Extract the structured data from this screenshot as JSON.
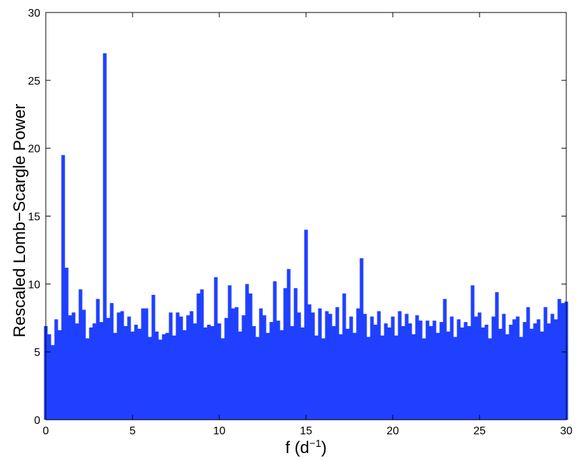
{
  "chart_data": {
    "type": "stem",
    "ylabel": "Rescaled Lomb−Scargle Power",
    "xlabel": [
      "f (d",
      "−1",
      ")"
    ],
    "color": "#2040ff",
    "xlim": [
      0,
      30
    ],
    "xticks": [
      0,
      5,
      10,
      15,
      20,
      25,
      30
    ],
    "ylim": [
      0,
      30
    ],
    "yticks": [
      0,
      5,
      10,
      15,
      20,
      25,
      30
    ],
    "x": [
      0,
      0.2,
      0.4,
      0.6,
      0.8,
      1,
      1.2,
      1.4,
      1.6,
      1.8,
      2,
      2.2,
      2.4,
      2.6,
      2.8,
      3,
      3.2,
      3.4,
      3.6,
      3.8,
      4,
      4.2,
      4.4,
      4.6,
      4.8,
      5,
      5.2,
      5.4,
      5.6,
      5.8,
      6,
      6.2,
      6.4,
      6.6,
      6.8,
      7,
      7.2,
      7.4,
      7.6,
      7.8,
      8,
      8.2,
      8.4,
      8.6,
      8.8,
      9,
      9.2,
      9.4,
      9.6,
      9.8,
      10,
      10.2,
      10.4,
      10.6,
      10.8,
      11,
      11.2,
      11.4,
      11.6,
      11.8,
      12,
      12.2,
      12.4,
      12.6,
      12.8,
      13,
      13.2,
      13.4,
      13.6,
      13.8,
      14,
      14.2,
      14.4,
      14.6,
      14.8,
      15,
      15.2,
      15.4,
      15.6,
      15.8,
      16,
      16.2,
      16.4,
      16.6,
      16.8,
      17,
      17.2,
      17.4,
      17.6,
      17.8,
      18,
      18.2,
      18.4,
      18.6,
      18.8,
      19,
      19.2,
      19.4,
      19.6,
      19.8,
      20,
      20.2,
      20.4,
      20.6,
      20.8,
      21,
      21.2,
      21.4,
      21.6,
      21.8,
      22,
      22.2,
      22.4,
      22.6,
      22.8,
      23,
      23.2,
      23.4,
      23.6,
      23.8,
      24,
      24.2,
      24.4,
      24.6,
      24.8,
      25,
      25.2,
      25.4,
      25.6,
      25.8,
      26,
      26.2,
      26.4,
      26.6,
      26.8,
      27,
      27.2,
      27.4,
      27.6,
      27.8,
      28,
      28.2,
      28.4,
      28.6,
      28.8,
      29,
      29.2,
      29.4,
      29.6,
      29.8,
      30
    ],
    "values": [
      6.9,
      6.3,
      5.5,
      7.4,
      6.6,
      19.5,
      11.2,
      7.7,
      7.9,
      7.1,
      9.6,
      8.1,
      6.0,
      6.8,
      7.1,
      8.9,
      7.2,
      27.0,
      7.5,
      8.6,
      6.4,
      7.9,
      8.0,
      6.9,
      7.6,
      6.5,
      7.0,
      6.7,
      8.2,
      8.2,
      6.1,
      9.2,
      6.5,
      5.9,
      6.3,
      6.4,
      7.9,
      6.2,
      7.9,
      7.6,
      6.6,
      7.7,
      8.0,
      7.1,
      9.3,
      9.6,
      6.8,
      7.0,
      6.9,
      10.5,
      7.1,
      6.0,
      7.5,
      9.9,
      8.2,
      8.3,
      6.5,
      7.7,
      10.0,
      9.3,
      6.9,
      6.1,
      8.2,
      7.7,
      6.4,
      7.2,
      10.2,
      7.3,
      6.6,
      9.7,
      11.1,
      6.9,
      9.7,
      7.9,
      6.8,
      14.0,
      8.5,
      7.9,
      6.2,
      8.2,
      6.0,
      8.0,
      7.8,
      6.9,
      8.3,
      6.3,
      9.3,
      6.7,
      7.6,
      6.4,
      8.2,
      11.9,
      7.8,
      6.1,
      7.6,
      7.0,
      8.0,
      6.2,
      7.1,
      6.8,
      7.6,
      6.2,
      8.0,
      6.9,
      7.8,
      7.1,
      6.3,
      7.7,
      7.3,
      6.0,
      7.3,
      6.9,
      7.3,
      6.4,
      7.2,
      8.9,
      6.5,
      7.6,
      6.1,
      7.4,
      6.8,
      7.2,
      6.9,
      9.9,
      7.6,
      7.9,
      6.8,
      7.0,
      6.0,
      7.6,
      9.4,
      6.7,
      7.8,
      6.3,
      7.0,
      7.4,
      7.6,
      6.1,
      7.2,
      8.3,
      6.7,
      7.1,
      7.4,
      6.5,
      8.3,
      7.1,
      7.8,
      7.4,
      8.9,
      8.6,
      8.7
    ]
  }
}
